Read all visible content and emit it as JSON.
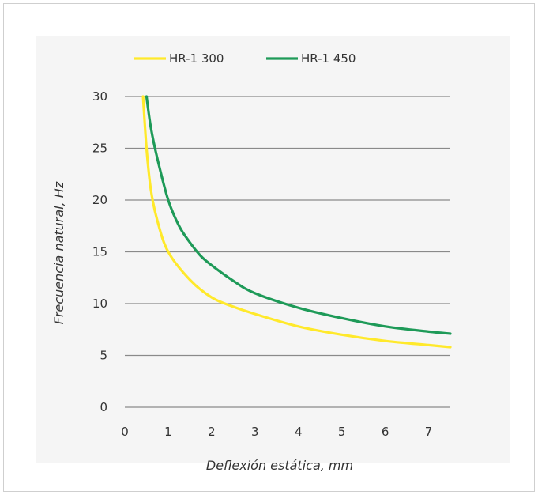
{
  "chart_data": {
    "type": "line",
    "xlabel": "Deflexión estática, mm",
    "ylabel": "Frecuencia natural, Hz",
    "xlim": [
      0,
      7.5
    ],
    "ylim": [
      0,
      30
    ],
    "x_ticks": [
      "0",
      "1",
      "2",
      "3",
      "4",
      "5",
      "6",
      "7"
    ],
    "y_ticks": [
      "0",
      "5",
      "10",
      "15",
      "20",
      "25",
      "30"
    ],
    "grid": "horizontal",
    "legend_position": "top",
    "series": [
      {
        "name": "HR-1 300",
        "color": "#ffe92b",
        "points": [
          [
            0.42,
            30
          ],
          [
            0.5,
            25
          ],
          [
            0.6,
            21
          ],
          [
            0.75,
            18
          ],
          [
            1.0,
            15
          ],
          [
            1.5,
            12.3
          ],
          [
            2.0,
            10.6
          ],
          [
            2.5,
            9.7
          ],
          [
            3.0,
            9.0
          ],
          [
            4.0,
            7.8
          ],
          [
            5.0,
            7.0
          ],
          [
            6.0,
            6.4
          ],
          [
            7.0,
            6.0
          ],
          [
            7.5,
            5.8
          ]
        ]
      },
      {
        "name": "HR-1 450",
        "color": "#1e9a58",
        "points": [
          [
            0.5,
            30
          ],
          [
            0.6,
            27
          ],
          [
            0.75,
            24
          ],
          [
            1.0,
            20
          ],
          [
            1.25,
            17.5
          ],
          [
            1.5,
            15.9
          ],
          [
            1.75,
            14.6
          ],
          [
            2.0,
            13.7
          ],
          [
            2.5,
            12.2
          ],
          [
            3.0,
            11.0
          ],
          [
            4.0,
            9.6
          ],
          [
            5.0,
            8.6
          ],
          [
            6.0,
            7.8
          ],
          [
            7.0,
            7.3
          ],
          [
            7.5,
            7.1
          ]
        ]
      }
    ]
  }
}
